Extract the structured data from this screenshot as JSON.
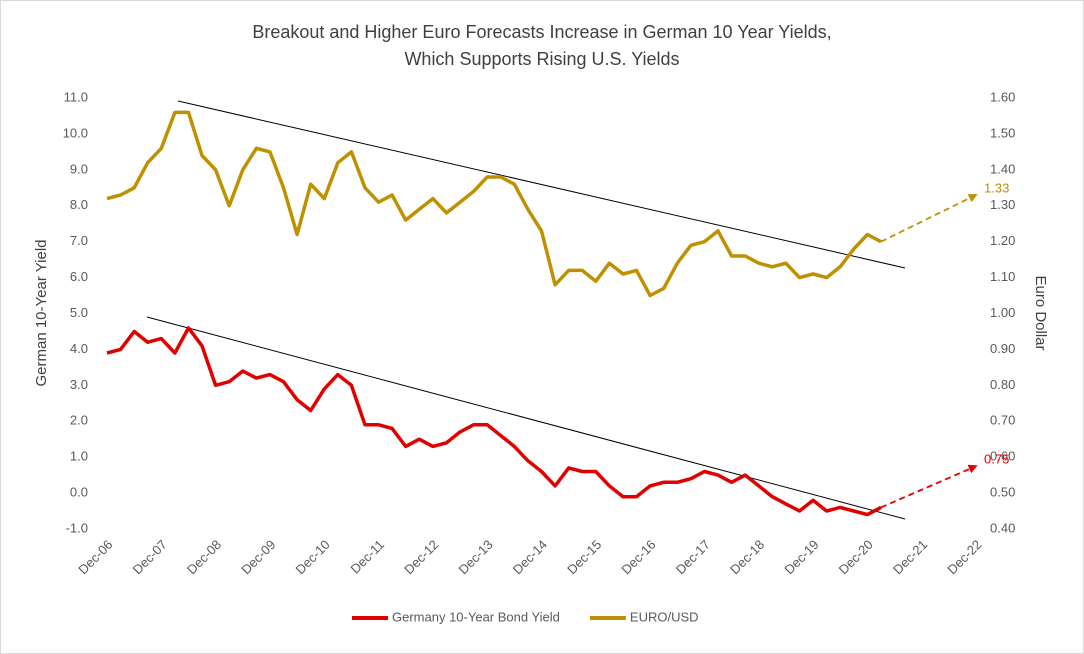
{
  "chart_data": {
    "type": "line",
    "title": [
      "Breakout and Higher Euro Forecasts Increase in German 10 Year Yields,",
      "Which Supports Rising U.S. Yields"
    ],
    "y_label": "German 10-Year Yield",
    "y2_label": "Euro Dollar",
    "categories": [
      "Dec-06",
      null,
      null,
      null,
      "Dec-07",
      null,
      null,
      null,
      "Dec-08",
      null,
      null,
      null,
      "Dec-09",
      null,
      null,
      null,
      "Dec-10",
      null,
      null,
      null,
      "Dec-11",
      null,
      null,
      null,
      "Dec-12",
      null,
      null,
      null,
      "Dec-13",
      null,
      null,
      null,
      "Dec-14",
      null,
      null,
      null,
      "Dec-15",
      null,
      null,
      null,
      "Dec-16",
      null,
      null,
      null,
      "Dec-17",
      null,
      null,
      null,
      "Dec-18",
      null,
      null,
      null,
      "Dec-19",
      null,
      null,
      null,
      "Dec-20",
      null,
      null,
      null,
      "Dec-21",
      null,
      null,
      null,
      "Dec-22"
    ],
    "series": [
      {
        "name": "Germany 10-Year Bond Yield",
        "color": "#e00000",
        "axis": "y",
        "forecast": 0.75,
        "values": [
          3.9,
          4.0,
          4.5,
          4.2,
          4.3,
          3.9,
          4.6,
          4.1,
          3.0,
          3.1,
          3.4,
          3.2,
          3.3,
          3.1,
          2.6,
          2.3,
          2.9,
          3.3,
          3.0,
          1.9,
          1.9,
          1.8,
          1.3,
          1.5,
          1.3,
          1.4,
          1.7,
          1.9,
          1.9,
          1.6,
          1.3,
          0.9,
          0.6,
          0.2,
          0.7,
          0.6,
          0.6,
          0.2,
          -0.1,
          -0.1,
          0.2,
          0.3,
          0.3,
          0.4,
          0.6,
          0.5,
          0.3,
          0.5,
          0.2,
          -0.1,
          -0.3,
          -0.5,
          -0.2,
          -0.5,
          -0.4,
          -0.5,
          -0.6,
          -0.4,
          null,
          null,
          null,
          null,
          null,
          null,
          null
        ]
      },
      {
        "name": "EURO/USD",
        "color": "#bf9000",
        "axis": "y2",
        "forecast": 1.33,
        "values": [
          1.32,
          1.33,
          1.35,
          1.42,
          1.46,
          1.56,
          1.56,
          1.44,
          1.4,
          1.3,
          1.4,
          1.46,
          1.45,
          1.35,
          1.22,
          1.36,
          1.32,
          1.42,
          1.45,
          1.35,
          1.31,
          1.33,
          1.26,
          1.29,
          1.32,
          1.28,
          1.31,
          1.34,
          1.38,
          1.38,
          1.36,
          1.29,
          1.23,
          1.08,
          1.12,
          1.12,
          1.09,
          1.14,
          1.11,
          1.12,
          1.05,
          1.07,
          1.14,
          1.19,
          1.2,
          1.23,
          1.16,
          1.16,
          1.14,
          1.13,
          1.14,
          1.1,
          1.11,
          1.1,
          1.13,
          1.18,
          1.22,
          1.2,
          null,
          null,
          null,
          null,
          null,
          null,
          null
        ]
      }
    ],
    "ylim": [
      -1,
      11
    ],
    "yticks": [
      {
        "value": -1,
        "label": "-1.0"
      },
      {
        "value": 0,
        "label": "0.0"
      },
      {
        "value": 1,
        "label": "1.0"
      },
      {
        "value": 2,
        "label": "2.0"
      },
      {
        "value": 3,
        "label": "3.0"
      },
      {
        "value": 4,
        "label": "4.0"
      },
      {
        "value": 5,
        "label": "5.0"
      },
      {
        "value": 6,
        "label": "6.0"
      },
      {
        "value": 7,
        "label": "7.0"
      },
      {
        "value": 8,
        "label": "8.0"
      },
      {
        "value": 9,
        "label": "9.0"
      },
      {
        "value": 10,
        "label": "10.0"
      },
      {
        "value": 11,
        "label": "11.0"
      }
    ],
    "y2lim": [
      0.4,
      1.6
    ],
    "y2ticks": [
      {
        "value": 0.4,
        "label": "0.40"
      },
      {
        "value": 0.5,
        "label": "0.50"
      },
      {
        "value": 0.6,
        "label": "0.60"
      },
      {
        "value": 0.7,
        "label": "0.70"
      },
      {
        "value": 0.8,
        "label": "0.80"
      },
      {
        "value": 0.9,
        "label": "0.90"
      },
      {
        "value": 1,
        "label": "1.00"
      },
      {
        "value": 1.1,
        "label": "1.10"
      },
      {
        "value": 1.2,
        "label": "1.20"
      },
      {
        "value": 1.3,
        "label": "1.30"
      },
      {
        "value": 1.4,
        "label": "1.40"
      },
      {
        "value": 1.5,
        "label": "1.50"
      },
      {
        "value": 1.6,
        "label": "1.60"
      }
    ],
    "legend": "bottom",
    "grid": false
  }
}
